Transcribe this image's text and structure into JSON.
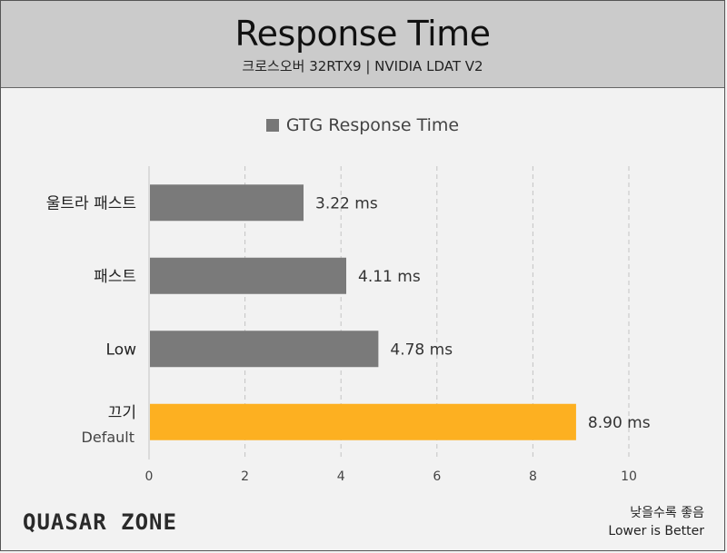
{
  "header": {
    "title": "Response Time",
    "subtitle": "크로스오버 32RTX9  |  NVIDIA LDAT V2"
  },
  "colors": {
    "default_bar": "#7a7a7a",
    "highlight_bar": "#fdb021",
    "header_bg": "#cbcbcb",
    "gridline": "#c4c4c4"
  },
  "chart_data": {
    "type": "bar",
    "orientation": "horizontal",
    "categories": [
      "울트라 패스트",
      "패스트",
      "Low",
      "끄기"
    ],
    "category_sublabels": [
      "",
      "",
      "",
      "Default"
    ],
    "series": [
      {
        "name": "GTG Response Time",
        "values": [
          3.22,
          4.11,
          4.78,
          8.9
        ]
      }
    ],
    "value_labels": [
      "3.22 ms",
      "4.11 ms",
      "4.78 ms",
      "8.90 ms"
    ],
    "highlight_index": 3,
    "xlim": [
      0,
      10
    ],
    "xticks": [
      0,
      2,
      4,
      6,
      8,
      10
    ],
    "grid": true,
    "legend_position": "top"
  },
  "footer": {
    "logo_text": "QUASAR ZONE",
    "note_line1": "낮을수록 좋음",
    "note_line2": "Lower is Better"
  }
}
